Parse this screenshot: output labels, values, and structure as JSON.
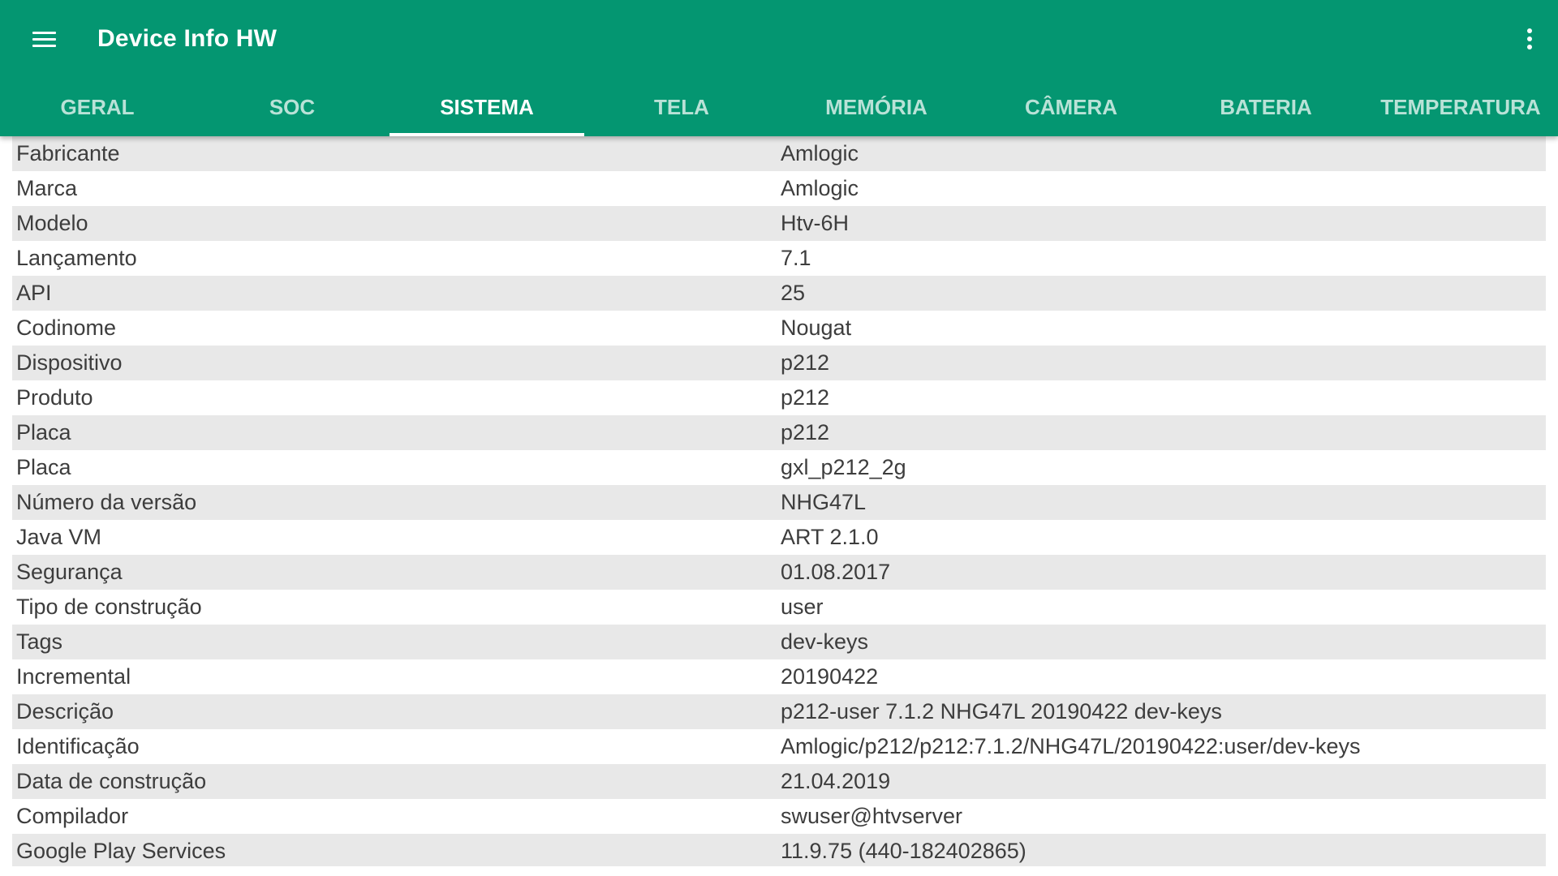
{
  "app": {
    "title": "Device Info HW",
    "menu_icon": "hamburger-menu-icon",
    "overflow_icon": "more-vert-icon",
    "accent_color": "#049671"
  },
  "tabs": [
    {
      "label": "GERAL",
      "active": false
    },
    {
      "label": "SOC",
      "active": false
    },
    {
      "label": "SISTEMA",
      "active": true
    },
    {
      "label": "TELA",
      "active": false
    },
    {
      "label": "MEMÓRIA",
      "active": false
    },
    {
      "label": "CÂMERA",
      "active": false
    },
    {
      "label": "BATERIA",
      "active": false
    },
    {
      "label": "TEMPERATURA",
      "active": false
    }
  ],
  "rows": [
    {
      "key": "Fabricante",
      "value": "Amlogic"
    },
    {
      "key": "Marca",
      "value": "Amlogic"
    },
    {
      "key": "Modelo",
      "value": "Htv-6H"
    },
    {
      "key": "Lançamento",
      "value": "7.1"
    },
    {
      "key": "API",
      "value": "25"
    },
    {
      "key": "Codinome",
      "value": "Nougat"
    },
    {
      "key": "Dispositivo",
      "value": "p212"
    },
    {
      "key": "Produto",
      "value": "p212"
    },
    {
      "key": "Placa",
      "value": "p212"
    },
    {
      "key": "Placa",
      "value": "gxl_p212_2g"
    },
    {
      "key": "Número da versão",
      "value": "NHG47L"
    },
    {
      "key": "Java VM",
      "value": "ART 2.1.0"
    },
    {
      "key": "Segurança",
      "value": "01.08.2017"
    },
    {
      "key": "Tipo de construção",
      "value": "user"
    },
    {
      "key": "Tags",
      "value": "dev-keys"
    },
    {
      "key": "Incremental",
      "value": "20190422"
    },
    {
      "key": "Descrição",
      "value": "p212-user 7.1.2 NHG47L 20190422 dev-keys"
    },
    {
      "key": "Identificação",
      "value": "Amlogic/p212/p212:7.1.2/NHG47L/20190422:user/dev-keys"
    },
    {
      "key": "Data de construção",
      "value": "21.04.2019"
    },
    {
      "key": "Compilador",
      "value": "swuser@htvserver"
    },
    {
      "key": "Google Play Services",
      "value": "11.9.75 (440-182402865)"
    }
  ]
}
